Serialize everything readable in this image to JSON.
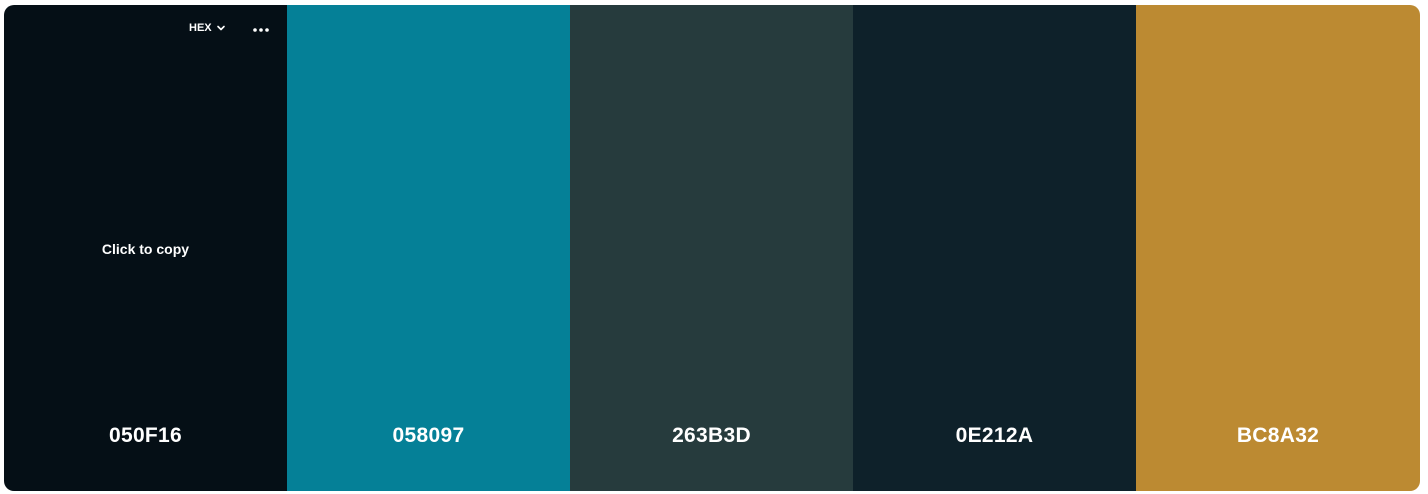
{
  "toolbar": {
    "format_label": "HEX"
  },
  "hint": {
    "copy_text": "Click to copy"
  },
  "swatches": [
    {
      "hex": "050F16",
      "color": "#050F16"
    },
    {
      "hex": "058097",
      "color": "#058097"
    },
    {
      "hex": "263B3D",
      "color": "#263B3D"
    },
    {
      "hex": "0E212A",
      "color": "#0E212A"
    },
    {
      "hex": "BC8A32",
      "color": "#BC8A32"
    }
  ],
  "icons": {
    "format": "chevron-down-icon",
    "more": "more-horizontal-icon"
  }
}
